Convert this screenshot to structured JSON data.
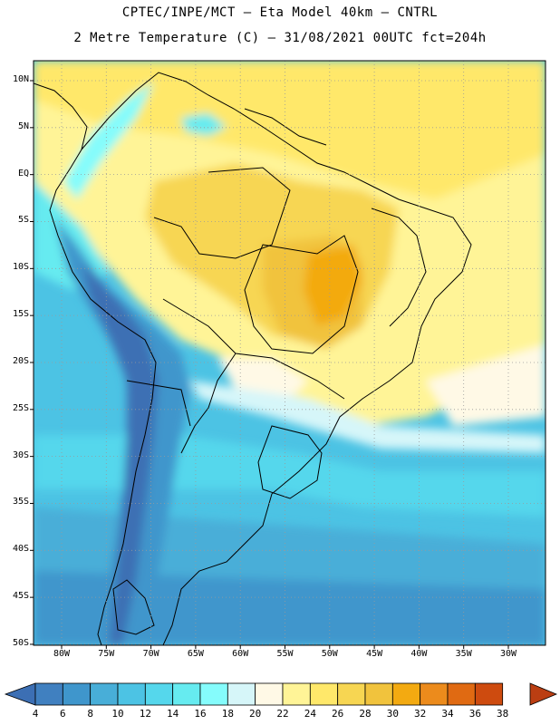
{
  "header": {
    "line1": "CPTEC/INPE/MCT – Eta Model 40km – CNTRL",
    "line2": "2 Metre Temperature (C) – 31/08/2021 00UTC fct=204h"
  },
  "map": {
    "lat_labels": [
      "10N",
      "5N",
      "EQ",
      "5S",
      "10S",
      "15S",
      "20S",
      "25S",
      "30S",
      "35S",
      "40S",
      "45S",
      "50S"
    ],
    "lon_labels": [
      "80W",
      "75W",
      "70W",
      "65W",
      "60W",
      "55W",
      "50W",
      "45W",
      "40W",
      "35W",
      "30W"
    ],
    "grid_lines": "dotted"
  },
  "colorbar": {
    "levels": [
      "4",
      "6",
      "8",
      "10",
      "12",
      "14",
      "16",
      "18",
      "20",
      "22",
      "24",
      "26",
      "28",
      "30",
      "32",
      "34",
      "36",
      "38"
    ],
    "colors": [
      "#3c6fb4",
      "#4080c0",
      "#3f96cc",
      "#48aed8",
      "#4cc3e4",
      "#55d7ec",
      "#66ebf0",
      "#85fcfc",
      "#d6f6f9",
      "#fff9e6",
      "#fff497",
      "#ffe86a",
      "#f7d652",
      "#f1c33d",
      "#f3aa11",
      "#ec8b1c",
      "#e06a12",
      "#ce4b0f",
      "#bb3e12"
    ]
  }
}
